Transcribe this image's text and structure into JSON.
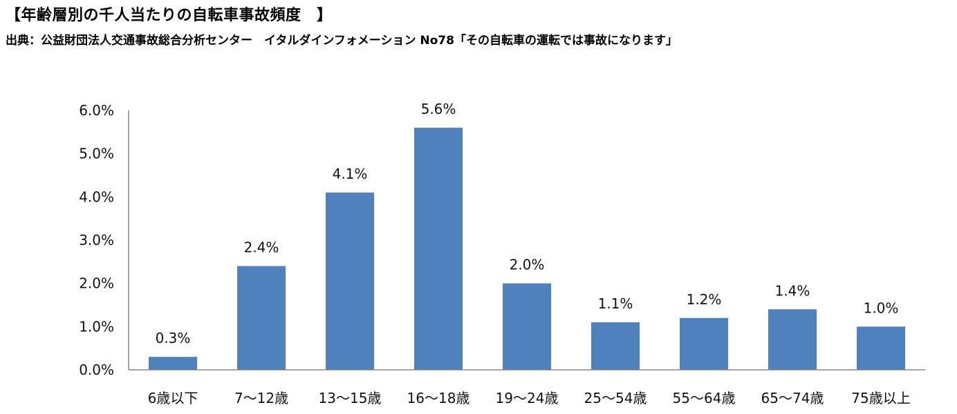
{
  "header": {
    "title": "【年齢層別の千人当たりの自転車事故頻度　】",
    "source": "出典：公益財団法人交通事故総合分析センター　イタルダインフォメーション No78「その自転車の運転では事故になります」"
  },
  "chart_data": {
    "type": "bar",
    "categories": [
      "6歳以下",
      "7～12歳",
      "13～15歳",
      "16～18歳",
      "19～24歳",
      "25～54歳",
      "55～64歳",
      "65～74歳",
      "75歳以上"
    ],
    "values": [
      0.3,
      2.4,
      4.1,
      5.6,
      2.0,
      1.1,
      1.2,
      1.4,
      1.0
    ],
    "data_labels": [
      "0.3%",
      "2.4%",
      "4.1%",
      "5.6%",
      "2.0%",
      "1.1%",
      "1.2%",
      "1.4%",
      "1.0%"
    ],
    "ylim": [
      0,
      6
    ],
    "yticks": [
      0,
      1,
      2,
      3,
      4,
      5,
      6
    ],
    "ytick_labels": [
      "0.0%",
      "1.0%",
      "2.0%",
      "3.0%",
      "4.0%",
      "5.0%",
      "6.0%"
    ],
    "bar_color": "#4f81bd",
    "axis_color": "#888888",
    "grid": false,
    "legend": "none"
  }
}
